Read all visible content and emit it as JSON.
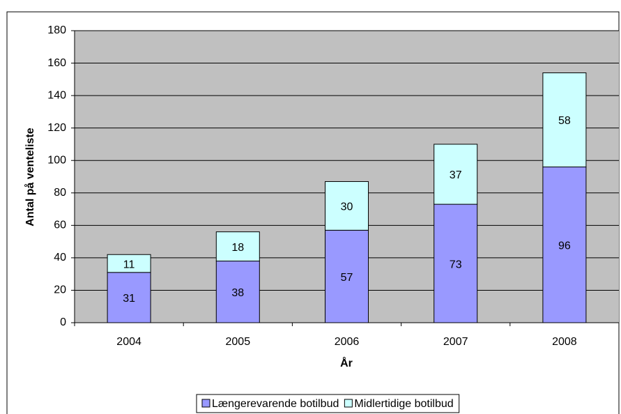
{
  "chart_data": {
    "type": "stacked_bar",
    "x_label": "År",
    "y_label": "Antal på venteliste",
    "categories": [
      "2004",
      "2005",
      "2006",
      "2007",
      "2008"
    ],
    "series": [
      {
        "name": "Længerevarende botilbud",
        "color": "#9999ff",
        "values": [
          31,
          38,
          57,
          73,
          96
        ]
      },
      {
        "name": "Midlertidige botilbud",
        "color": "#ccffff",
        "values": [
          11,
          18,
          30,
          37,
          58
        ]
      }
    ],
    "ylim": [
      0,
      180
    ],
    "yticks": [
      0,
      20,
      40,
      60,
      80,
      100,
      120,
      140,
      160,
      180
    ],
    "grid": true,
    "plot_background": "#c0c0c0",
    "legend": "bottom"
  }
}
